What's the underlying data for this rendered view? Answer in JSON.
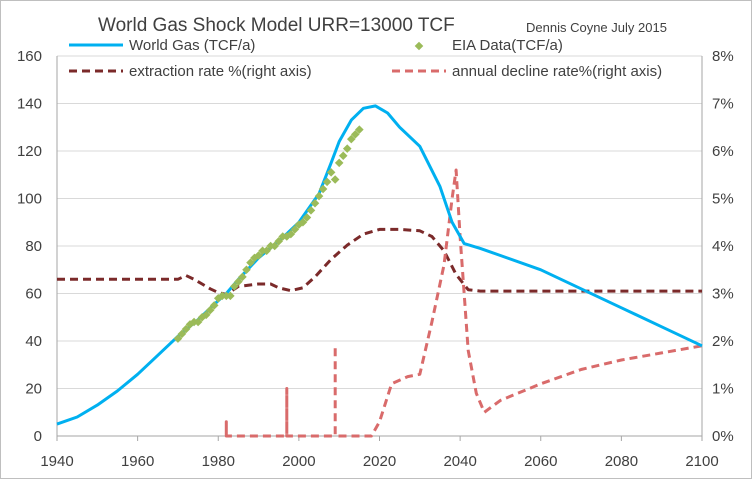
{
  "chart_data": {
    "type": "line",
    "title": "World Gas Shock Model URR=13000 TCF",
    "credit": "Dennis Coyne July 2015",
    "xlim": [
      1940,
      2100
    ],
    "x_ticks": [
      1940,
      1960,
      1980,
      2000,
      2020,
      2040,
      2060,
      2080,
      2100
    ],
    "y_left": {
      "lim": [
        0,
        160
      ],
      "ticks": [
        0,
        20,
        40,
        60,
        80,
        100,
        120,
        140,
        160
      ]
    },
    "y_right": {
      "lim": [
        0,
        8
      ],
      "ticks": [
        "0%",
        "1%",
        "2%",
        "3%",
        "4%",
        "5%",
        "6%",
        "7%",
        "8%"
      ]
    },
    "grid": "horizontal",
    "legend": "top",
    "series": [
      {
        "name": "World Gas (TCF/a)",
        "axis": "left",
        "style": "solid",
        "color": "#00b0f0",
        "points": [
          [
            1940,
            5
          ],
          [
            1945,
            8
          ],
          [
            1950,
            13
          ],
          [
            1955,
            19
          ],
          [
            1960,
            26
          ],
          [
            1965,
            34
          ],
          [
            1970,
            42
          ],
          [
            1975,
            49
          ],
          [
            1980,
            57
          ],
          [
            1982,
            60
          ],
          [
            1985,
            66
          ],
          [
            1990,
            75
          ],
          [
            1995,
            82
          ],
          [
            2000,
            90
          ],
          [
            2005,
            102
          ],
          [
            2008,
            115
          ],
          [
            2010,
            124
          ],
          [
            2013,
            133
          ],
          [
            2016,
            138
          ],
          [
            2019,
            139
          ],
          [
            2022,
            136
          ],
          [
            2025,
            130
          ],
          [
            2030,
            122
          ],
          [
            2035,
            105
          ],
          [
            2038,
            90
          ],
          [
            2041,
            81
          ],
          [
            2045,
            79
          ],
          [
            2050,
            76
          ],
          [
            2060,
            70
          ],
          [
            2070,
            62
          ],
          [
            2080,
            54
          ],
          [
            2090,
            46
          ],
          [
            2100,
            38
          ]
        ]
      },
      {
        "name": "EIA Data(TCF/a)",
        "axis": "left",
        "style": "markers",
        "color": "#9bbb59",
        "points": [
          [
            1970,
            41
          ],
          [
            1971,
            43
          ],
          [
            1972,
            45
          ],
          [
            1973,
            47
          ],
          [
            1974,
            48
          ],
          [
            1975,
            48
          ],
          [
            1976,
            50
          ],
          [
            1977,
            51
          ],
          [
            1978,
            53
          ],
          [
            1979,
            55
          ],
          [
            1980,
            58
          ],
          [
            1981,
            59
          ],
          [
            1982,
            59
          ],
          [
            1983,
            59
          ],
          [
            1984,
            63
          ],
          [
            1985,
            65
          ],
          [
            1986,
            67
          ],
          [
            1987,
            70
          ],
          [
            1988,
            73
          ],
          [
            1989,
            75
          ],
          [
            1990,
            76
          ],
          [
            1991,
            78
          ],
          [
            1992,
            78
          ],
          [
            1993,
            80
          ],
          [
            1994,
            80
          ],
          [
            1995,
            82
          ],
          [
            1996,
            84
          ],
          [
            1997,
            84
          ],
          [
            1998,
            85
          ],
          [
            1999,
            87
          ],
          [
            2000,
            89
          ],
          [
            2001,
            90
          ],
          [
            2002,
            92
          ],
          [
            2003,
            95
          ],
          [
            2004,
            98
          ],
          [
            2005,
            101
          ],
          [
            2006,
            104
          ],
          [
            2007,
            107
          ],
          [
            2008,
            111
          ],
          [
            2009,
            108
          ],
          [
            2010,
            115
          ],
          [
            2011,
            118
          ],
          [
            2012,
            121
          ],
          [
            2013,
            125
          ],
          [
            2014,
            127
          ],
          [
            2015,
            129
          ]
        ]
      },
      {
        "name": "extraction rate %(right axis)",
        "axis": "right",
        "style": "dashed",
        "color": "#7b2a2a",
        "points": [
          [
            1940,
            3.3
          ],
          [
            1970,
            3.3
          ],
          [
            1972,
            3.38
          ],
          [
            1974,
            3.3
          ],
          [
            1976,
            3.2
          ],
          [
            1978,
            3.1
          ],
          [
            1980,
            3.02
          ],
          [
            1982,
            2.98
          ],
          [
            1985,
            3.15
          ],
          [
            1990,
            3.2
          ],
          [
            1993,
            3.2
          ],
          [
            1995,
            3.12
          ],
          [
            1998,
            3.06
          ],
          [
            2001,
            3.12
          ],
          [
            2004,
            3.35
          ],
          [
            2008,
            3.72
          ],
          [
            2012,
            4.02
          ],
          [
            2016,
            4.25
          ],
          [
            2020,
            4.35
          ],
          [
            2025,
            4.35
          ],
          [
            2030,
            4.32
          ],
          [
            2033,
            4.2
          ],
          [
            2036,
            3.9
          ],
          [
            2039,
            3.4
          ],
          [
            2042,
            3.08
          ],
          [
            2045,
            3.05
          ],
          [
            2100,
            3.05
          ]
        ]
      },
      {
        "name": "annual decline rate%(right axis)",
        "axis": "right",
        "style": "dashed",
        "color": "#d96b6b",
        "points": [
          [
            1982,
            0
          ],
          [
            1982,
            0.3
          ],
          [
            1982,
            0
          ],
          [
            1997,
            0
          ],
          [
            1997,
            1
          ],
          [
            1997,
            0
          ],
          [
            2009,
            0
          ],
          [
            2009,
            1.9
          ],
          [
            2009,
            0
          ],
          [
            2018,
            0
          ],
          [
            2020,
            0.3
          ],
          [
            2023,
            1.1
          ],
          [
            2027,
            1.25
          ],
          [
            2030,
            1.3
          ],
          [
            2033,
            2.4
          ],
          [
            2036,
            3.6
          ],
          [
            2038,
            5
          ],
          [
            2039,
            5.6
          ],
          [
            2040,
            4.2
          ],
          [
            2042,
            1.8
          ],
          [
            2044,
            0.9
          ],
          [
            2046,
            0.5
          ],
          [
            2050,
            0.75
          ],
          [
            2060,
            1.1
          ],
          [
            2070,
            1.4
          ],
          [
            2080,
            1.6
          ],
          [
            2090,
            1.75
          ],
          [
            2100,
            1.9
          ]
        ]
      }
    ]
  }
}
